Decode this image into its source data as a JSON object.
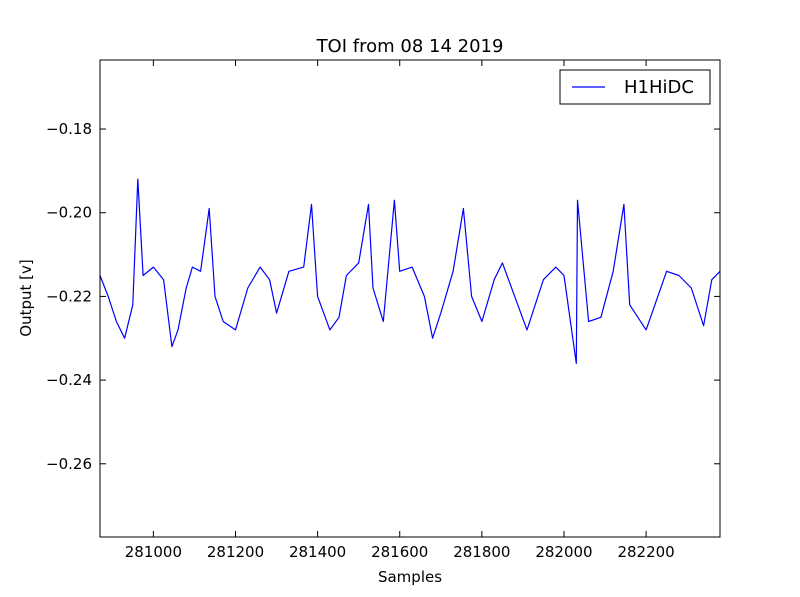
{
  "chart_data": {
    "type": "line",
    "title": "TOI from 08 14 2019",
    "xlabel": "Samples",
    "ylabel": "Output [v]",
    "xlim": [
      280870,
      282380
    ],
    "ylim": [
      -0.2775,
      -0.1635
    ],
    "xticks": [
      281000,
      281200,
      281400,
      281600,
      281800,
      282000,
      282200
    ],
    "xtick_labels": [
      "281000",
      "281200",
      "281400",
      "281600",
      "281800",
      "282000",
      "282200"
    ],
    "yticks": [
      -0.18,
      -0.2,
      -0.22,
      -0.24,
      -0.26
    ],
    "ytick_labels": [
      "−0.18",
      "−0.20",
      "−0.22",
      "−0.24",
      "−0.26"
    ],
    "grid": false,
    "legend": {
      "position": "top-right"
    },
    "series": [
      {
        "name": "H1HiDC",
        "color": "#0000ff",
        "x": [
          280870,
          280890,
          280910,
          280930,
          280950,
          280962,
          280975,
          281000,
          281025,
          281045,
          281060,
          281080,
          281095,
          281115,
          281136,
          281150,
          281170,
          281200,
          281230,
          281260,
          281283,
          281300,
          281330,
          281366,
          281385,
          281400,
          281430,
          281452,
          281470,
          281500,
          281524,
          281535,
          281560,
          281587,
          281600,
          281630,
          281660,
          281680,
          281700,
          281730,
          281755,
          281775,
          281800,
          281830,
          281850,
          281880,
          281910,
          281920,
          281950,
          281980,
          282000,
          282030,
          282033,
          282060,
          282090,
          282120,
          282146,
          282160,
          282200,
          282250,
          282280,
          282310,
          282340,
          282360,
          282380
        ],
        "values": [
          -0.215,
          -0.22,
          -0.226,
          -0.23,
          -0.222,
          -0.192,
          -0.215,
          -0.213,
          -0.216,
          -0.232,
          -0.228,
          -0.218,
          -0.213,
          -0.214,
          -0.199,
          -0.22,
          -0.226,
          -0.228,
          -0.218,
          -0.213,
          -0.216,
          -0.224,
          -0.214,
          -0.213,
          -0.198,
          -0.22,
          -0.228,
          -0.225,
          -0.215,
          -0.212,
          -0.198,
          -0.218,
          -0.226,
          -0.197,
          -0.214,
          -0.213,
          -0.22,
          -0.23,
          -0.224,
          -0.214,
          -0.199,
          -0.22,
          -0.226,
          -0.216,
          -0.212,
          -0.22,
          -0.228,
          -0.225,
          -0.216,
          -0.213,
          -0.215,
          -0.236,
          -0.197,
          -0.226,
          -0.225,
          -0.214,
          -0.198,
          -0.222,
          -0.228,
          -0.214,
          -0.215,
          -0.218,
          -0.227,
          -0.216,
          -0.214
        ]
      }
    ]
  }
}
